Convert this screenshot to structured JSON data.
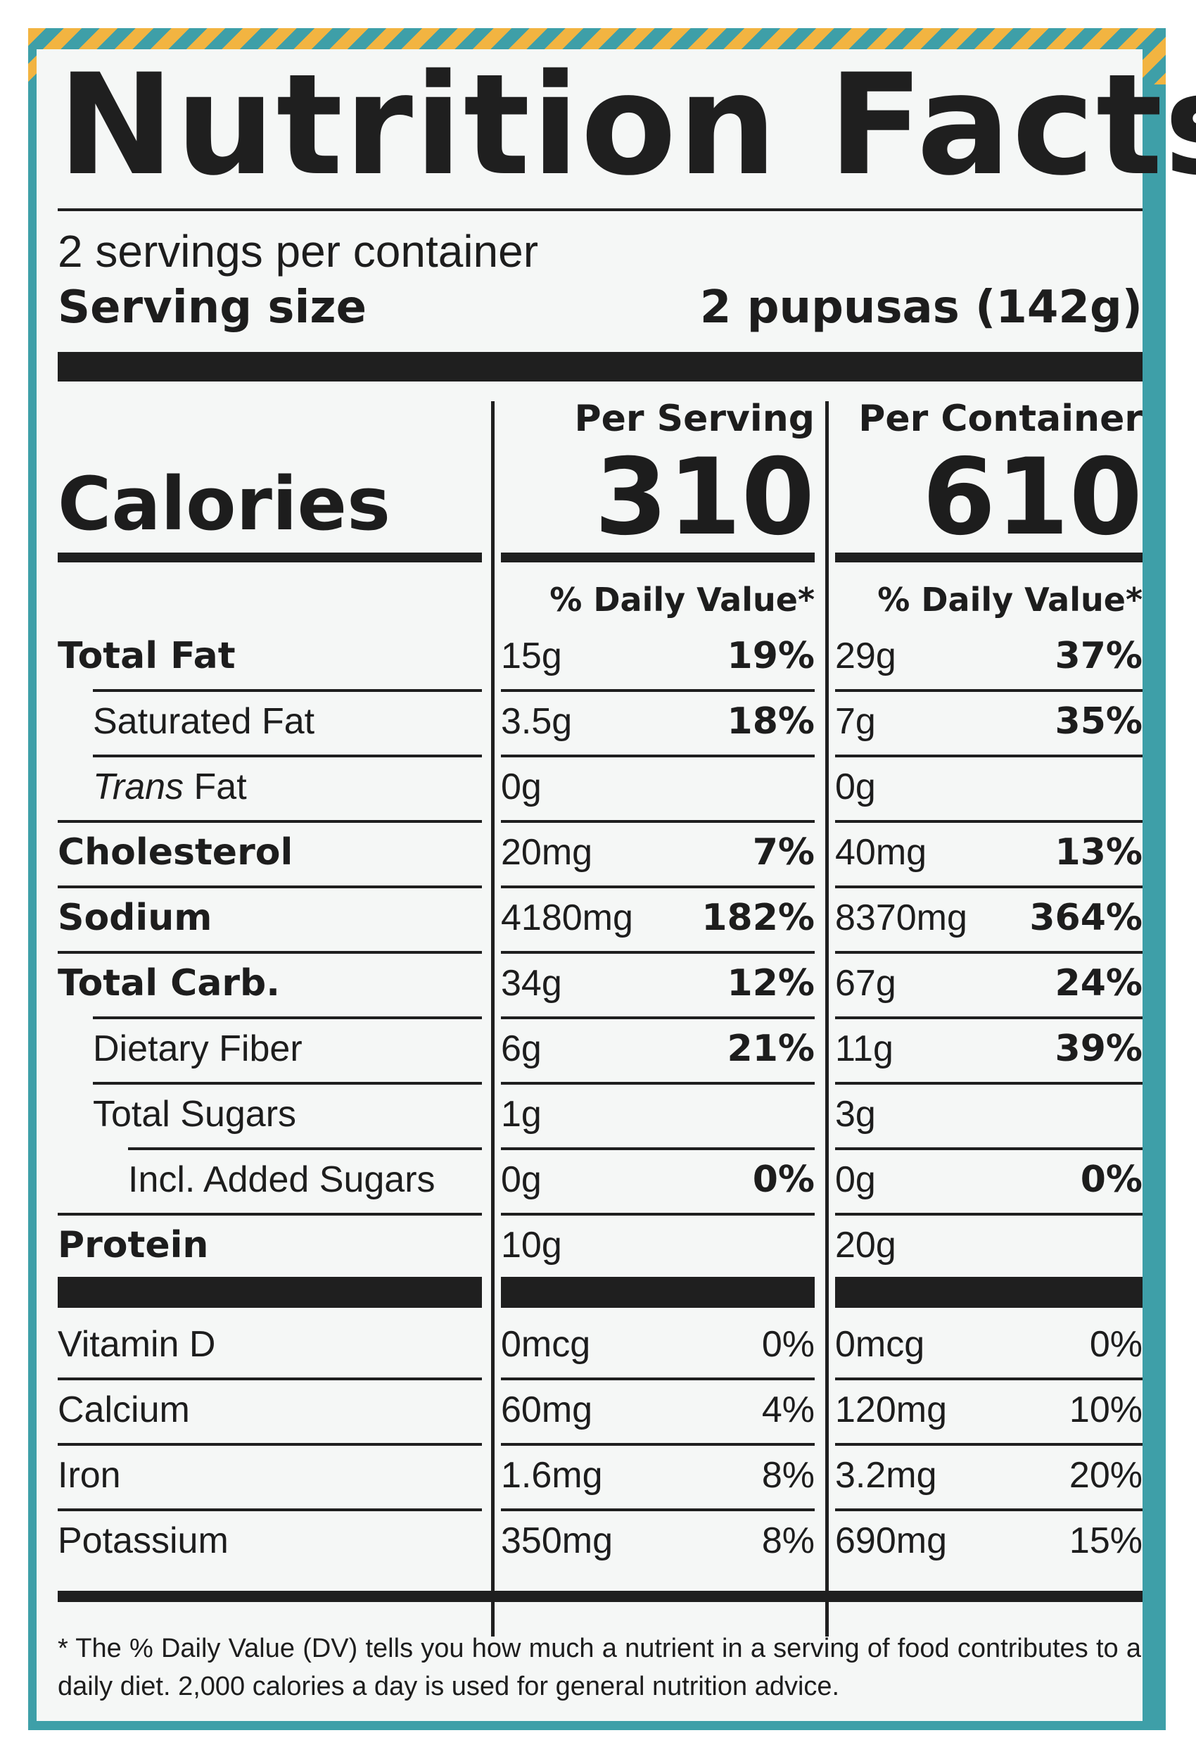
{
  "title": "Nutrition Facts",
  "servings_per_container": "2 servings per container",
  "serving_size_label": "Serving size",
  "serving_size_value": "2 pupusas (142g)",
  "columns": {
    "per_serving": "Per Serving",
    "per_container": "Per Container"
  },
  "calories": {
    "label": "Calories",
    "per_serving": "310",
    "per_container": "610"
  },
  "daily_value_header": "% Daily Value*",
  "nutrients": [
    {
      "label": "Total Fat",
      "bold": true,
      "indent": 0,
      "serving_amount": "15g",
      "serving_dv": "19%",
      "container_amount": "29g",
      "container_dv": "37%"
    },
    {
      "label": "Saturated Fat",
      "bold": false,
      "indent": 1,
      "serving_amount": "3.5g",
      "serving_dv": "18%",
      "container_amount": "7g",
      "container_dv": "35%"
    },
    {
      "label_italic": "Trans",
      "label_rest": " Fat",
      "bold": false,
      "indent": 1,
      "serving_amount": "0g",
      "serving_dv": "",
      "container_amount": "0g",
      "container_dv": ""
    },
    {
      "label": "Cholesterol",
      "bold": true,
      "indent": 0,
      "serving_amount": "20mg",
      "serving_dv": "7%",
      "container_amount": "40mg",
      "container_dv": "13%"
    },
    {
      "label": "Sodium",
      "bold": true,
      "indent": 0,
      "serving_amount": "4180mg",
      "serving_dv": "182%",
      "container_amount": "8370mg",
      "container_dv": "364%"
    },
    {
      "label": "Total Carb.",
      "bold": true,
      "indent": 0,
      "serving_amount": "34g",
      "serving_dv": "12%",
      "container_amount": "67g",
      "container_dv": "24%"
    },
    {
      "label": "Dietary Fiber",
      "bold": false,
      "indent": 1,
      "serving_amount": "6g",
      "serving_dv": "21%",
      "container_amount": "11g",
      "container_dv": "39%"
    },
    {
      "label": "Total Sugars",
      "bold": false,
      "indent": 1,
      "serving_amount": "1g",
      "serving_dv": "",
      "container_amount": "3g",
      "container_dv": ""
    },
    {
      "label": "Incl. Added Sugars",
      "bold": false,
      "indent": 2,
      "serving_amount": "0g",
      "serving_dv": "0%",
      "container_amount": "0g",
      "container_dv": "0%"
    },
    {
      "label": "Protein",
      "bold": true,
      "indent": 0,
      "serving_amount": "10g",
      "serving_dv": "",
      "container_amount": "20g",
      "container_dv": ""
    }
  ],
  "vitamins": [
    {
      "label": "Vitamin D",
      "serving_amount": "0mcg",
      "serving_dv": "0%",
      "container_amount": "0mcg",
      "container_dv": "0%"
    },
    {
      "label": "Calcium",
      "serving_amount": "60mg",
      "serving_dv": "4%",
      "container_amount": "120mg",
      "container_dv": "10%"
    },
    {
      "label": "Iron",
      "serving_amount": "1.6mg",
      "serving_dv": "8%",
      "container_amount": "3.2mg",
      "container_dv": "20%"
    },
    {
      "label": "Potassium",
      "serving_amount": "350mg",
      "serving_dv": "8%",
      "container_amount": "690mg",
      "container_dv": "15%"
    }
  ],
  "footnote": "* The % Daily Value (DV) tells you how much a nutrient in a serving of food contributes to a daily diet. 2,000 calories a day is used for general nutrition advice."
}
